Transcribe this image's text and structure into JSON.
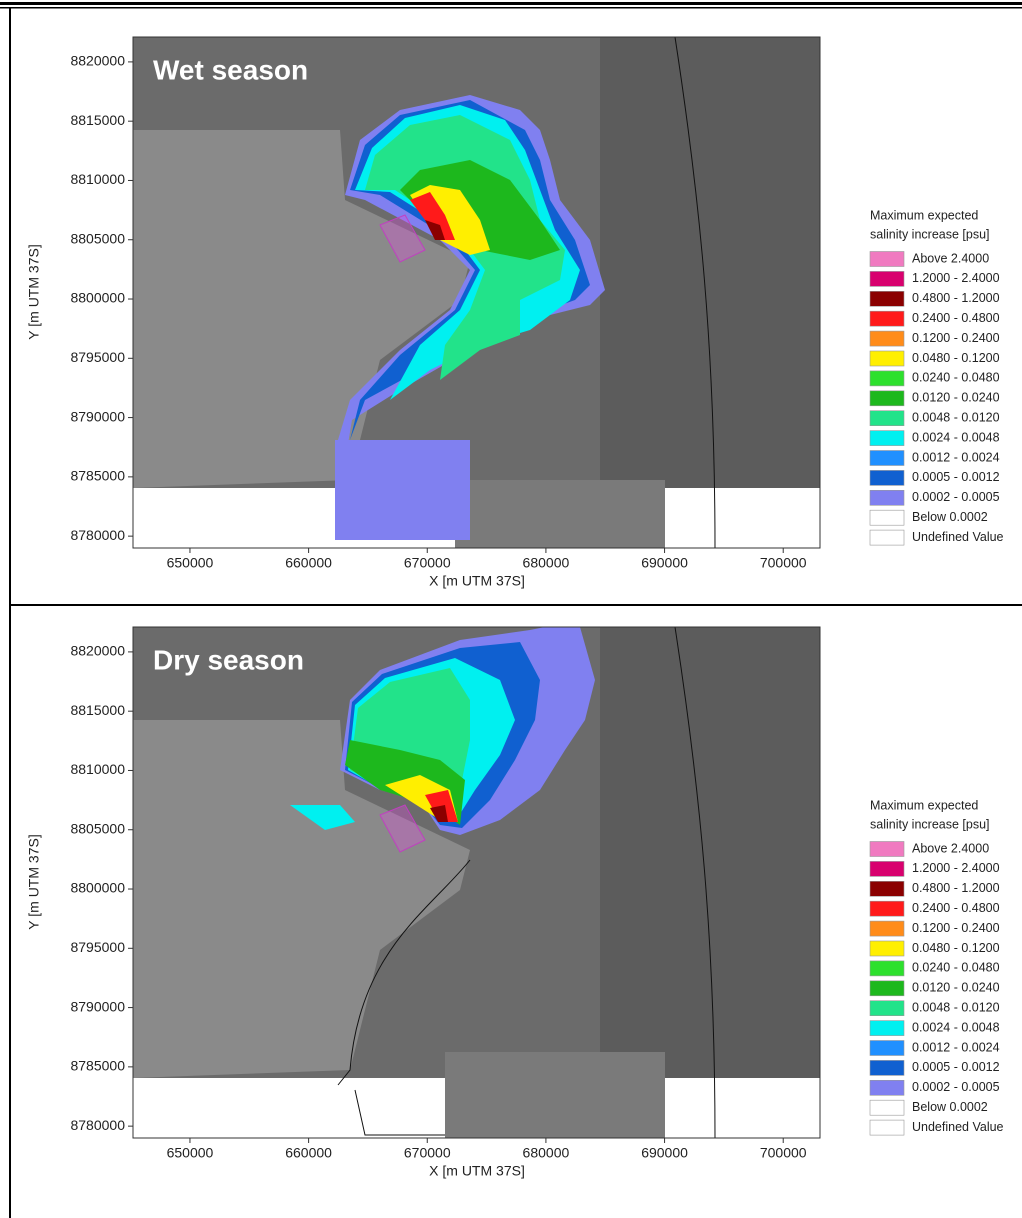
{
  "panels": [
    {
      "title": "Wet season",
      "x_label": "X [m UTM 37S]",
      "y_label": "Y [m UTM 37S]",
      "xlim": [
        645200,
        703100
      ],
      "ylim": [
        8779000,
        8822100
      ],
      "xticks": [
        650000,
        660000,
        670000,
        680000,
        690000,
        700000
      ],
      "yticks": [
        8780000,
        8785000,
        8790000,
        8795000,
        8800000,
        8805000,
        8810000,
        8815000,
        8820000
      ],
      "legend": {
        "title": [
          "Maximum expected",
          "salinity increase [psu]"
        ],
        "items": [
          {
            "label": "Above   2.4000",
            "color": "#f07ac0"
          },
          {
            "label": "1.2000 - 2.4000",
            "color": "#d8006e"
          },
          {
            "label": "0.4800 - 1.2000",
            "color": "#8b0000"
          },
          {
            "label": "0.2400 - 0.4800",
            "color": "#ff1a1a"
          },
          {
            "label": "0.1200 - 0.2400",
            "color": "#ff8c1a"
          },
          {
            "label": "0.0480 - 0.1200",
            "color": "#ffef00"
          },
          {
            "label": "0.0240 - 0.0480",
            "color": "#2de02d"
          },
          {
            "label": "0.0120 - 0.0240",
            "color": "#1db81d"
          },
          {
            "label": "0.0048 - 0.0120",
            "color": "#22e38a"
          },
          {
            "label": "0.0024 - 0.0048",
            "color": "#00f0f0"
          },
          {
            "label": "0.0012 - 0.0024",
            "color": "#2090ff"
          },
          {
            "label": "0.0005 - 0.0012",
            "color": "#1060d0"
          },
          {
            "label": "0.0002 - 0.0005",
            "color": "#8080f0"
          },
          {
            "label": "Below   0.0002",
            "color": "#ffffff"
          },
          {
            "label": "Undefined Value",
            "color": "#ffffff"
          }
        ]
      }
    },
    {
      "title": "Dry season",
      "x_label": "X [m UTM 37S]",
      "y_label": "Y [m UTM 37S]",
      "xlim": [
        645200,
        703100
      ],
      "ylim": [
        8779000,
        8822100
      ],
      "xticks": [
        650000,
        660000,
        670000,
        680000,
        690000,
        700000
      ],
      "yticks": [
        8780000,
        8785000,
        8790000,
        8795000,
        8800000,
        8805000,
        8810000,
        8815000,
        8820000
      ],
      "legend": {
        "title": [
          "Maximum expected",
          "salinity increase [psu]"
        ],
        "items": [
          {
            "label": "Above   2.4000",
            "color": "#f07ac0"
          },
          {
            "label": "1.2000 - 2.4000",
            "color": "#d8006e"
          },
          {
            "label": "0.4800 - 1.2000",
            "color": "#8b0000"
          },
          {
            "label": "0.2400 - 0.4800",
            "color": "#ff1a1a"
          },
          {
            "label": "0.1200 - 0.2400",
            "color": "#ff8c1a"
          },
          {
            "label": "0.0480 - 0.1200",
            "color": "#ffef00"
          },
          {
            "label": "0.0240 - 0.0480",
            "color": "#2de02d"
          },
          {
            "label": "0.0120 - 0.0240",
            "color": "#1db81d"
          },
          {
            "label": "0.0048 - 0.0120",
            "color": "#22e38a"
          },
          {
            "label": "0.0024 - 0.0048",
            "color": "#00f0f0"
          },
          {
            "label": "0.0012 - 0.0024",
            "color": "#2090ff"
          },
          {
            "label": "0.0005 - 0.0012",
            "color": "#1060d0"
          },
          {
            "label": "0.0002 - 0.0005",
            "color": "#8080f0"
          },
          {
            "label": "Below   0.0002",
            "color": "#ffffff"
          },
          {
            "label": "Undefined Value",
            "color": "#ffffff"
          }
        ]
      }
    }
  ]
}
